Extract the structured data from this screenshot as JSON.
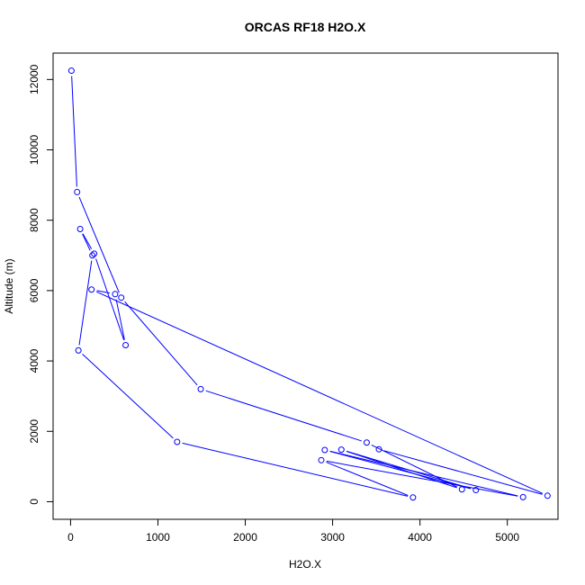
{
  "chart_data": {
    "type": "line",
    "title": "ORCAS RF18 H2O.X",
    "xlabel": "H2O.X",
    "ylabel": "Altitude (m)",
    "xlim": [
      -200,
      5580
    ],
    "ylim": [
      -500,
      12750
    ],
    "xticks": [
      0,
      1000,
      2000,
      3000,
      4000,
      5000
    ],
    "yticks": [
      0,
      2000,
      4000,
      6000,
      8000,
      10000,
      12000
    ],
    "grid": false,
    "legend": "none",
    "line_style": "lines+points",
    "color": "#0000ff",
    "series": [
      {
        "x": [
          10,
          75,
          580,
          1490,
          3390,
          4480,
          3100,
          4640,
          2910,
          5180,
          2870,
          3920,
          1220,
          90,
          250,
          110,
          270,
          630,
          510,
          240,
          5460,
          3530
        ],
        "y": [
          12250,
          8800,
          5800,
          3200,
          1680,
          350,
          1480,
          330,
          1470,
          130,
          1180,
          120,
          1700,
          4300,
          7000,
          7750,
          7050,
          4450,
          5900,
          6030,
          170,
          1490
        ]
      }
    ]
  }
}
